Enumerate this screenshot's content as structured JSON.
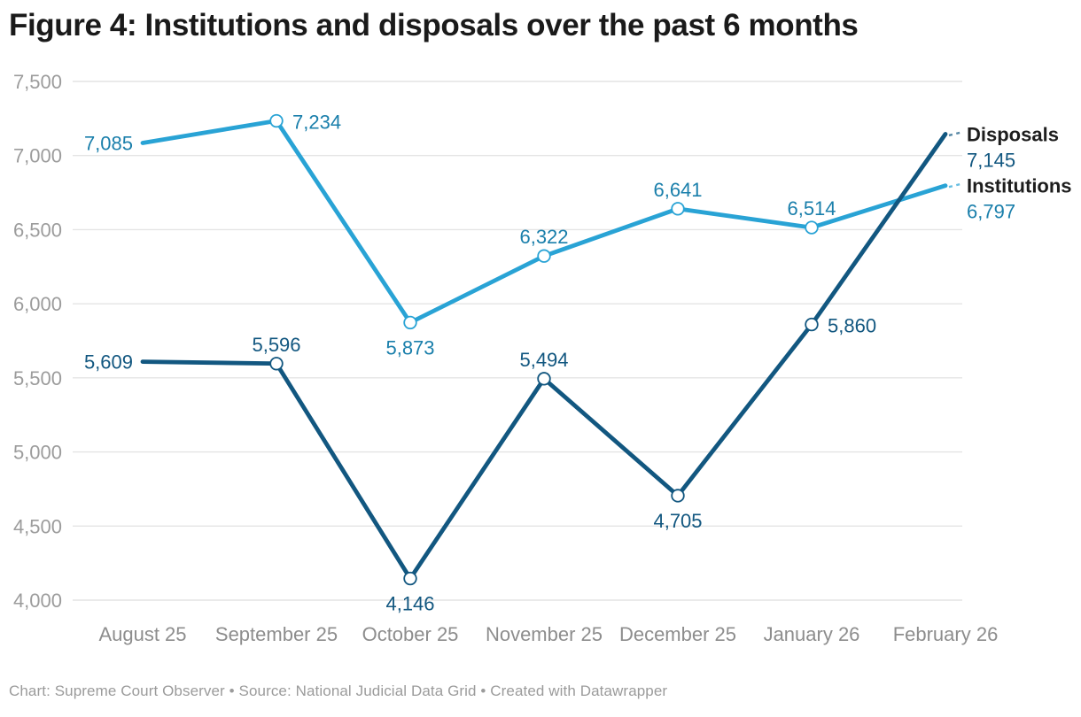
{
  "title": "Figure 4: Institutions and disposals over the past 6 months",
  "footer": "Chart: Supreme Court Observer • Source: National Judicial Data Grid • Created with Datawrapper",
  "chart_data": {
    "type": "line",
    "title": "Figure 4: Institutions and disposals over the past 6 months",
    "categories": [
      "August 25",
      "September 25",
      "October 25",
      "November 25",
      "December 25",
      "January 26",
      "February 26"
    ],
    "series": [
      {
        "name": "Institutions",
        "values": [
          7085,
          7234,
          5873,
          6322,
          6641,
          6514,
          6797
        ],
        "color": "#29a3d5",
        "label_color": "#1a7fab",
        "label_positions": [
          "left",
          "right",
          "below",
          "above",
          "above",
          "above",
          "end"
        ]
      },
      {
        "name": "Disposals",
        "values": [
          5609,
          5596,
          4146,
          5494,
          4705,
          5860,
          7145
        ],
        "color": "#125780",
        "label_color": "#125780",
        "label_positions": [
          "left",
          "above",
          "below",
          "above",
          "below",
          "right",
          "end"
        ]
      }
    ],
    "ylim": [
      4000,
      7500
    ],
    "yticks": [
      4000,
      4500,
      5000,
      5500,
      6000,
      6500,
      7000,
      7500
    ],
    "xlabel": "",
    "ylabel": "",
    "grid": "horizontal",
    "legend_position": "right-end-labels",
    "marker": "open-circle",
    "colors": {
      "grid": "#e4e4e4",
      "ytick_text": "#9c9c9c",
      "xtick_text": "#8d8d8d",
      "end_label_name": "#1d1d1d"
    }
  }
}
